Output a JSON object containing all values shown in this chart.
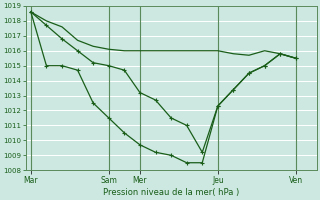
{
  "bg_color": "#cce8e0",
  "grid_color": "#ffffff",
  "line_color": "#1a5e1a",
  "marker_color": "#1a5e1a",
  "xlabel_text": "Pression niveau de la mer( hPa )",
  "ylim": [
    1008,
    1019
  ],
  "yticks": [
    1008,
    1009,
    1010,
    1011,
    1012,
    1013,
    1014,
    1015,
    1016,
    1017,
    1018,
    1019
  ],
  "xtick_labels": [
    "Mar",
    "Sam",
    "Mer",
    "Jeu",
    "Ven"
  ],
  "xtick_positions": [
    0,
    30,
    42,
    72,
    102
  ],
  "vline_positions": [
    0,
    30,
    42,
    72,
    102
  ],
  "xlim": [
    -2,
    110
  ],
  "series1_x": [
    0,
    6,
    12,
    18,
    24,
    30,
    36,
    42,
    48,
    54,
    60,
    66,
    72,
    78,
    84,
    90,
    96,
    102
  ],
  "series1_y": [
    1018.6,
    1018.0,
    1017.6,
    1016.7,
    1016.3,
    1016.1,
    1016.0,
    1016.0,
    1016.0,
    1016.0,
    1016.0,
    1016.0,
    1016.0,
    1015.8,
    1015.7,
    1016.0,
    1015.8,
    1015.5
  ],
  "series2_x": [
    0,
    6,
    12,
    18,
    24,
    30,
    36,
    42,
    48,
    54,
    60,
    66,
    72,
    78,
    84,
    90,
    96,
    102
  ],
  "series2_y": [
    1018.6,
    1017.7,
    1016.8,
    1016.0,
    1015.2,
    1015.0,
    1014.7,
    1013.2,
    1012.7,
    1011.5,
    1011.0,
    1009.2,
    1012.3,
    1013.4,
    1014.5,
    1015.0,
    1015.8,
    1015.5
  ],
  "series3_x": [
    0,
    6,
    12,
    18,
    24,
    30,
    36,
    42,
    48,
    54,
    60,
    66,
    72,
    78,
    84,
    90,
    96,
    102
  ],
  "series3_y": [
    1018.6,
    1015.0,
    1015.0,
    1014.7,
    1012.5,
    1011.5,
    1010.5,
    1009.7,
    1009.2,
    1009.0,
    1008.5,
    1008.5,
    1012.3,
    1013.4,
    1014.5,
    1015.0,
    1015.8,
    1015.5
  ]
}
